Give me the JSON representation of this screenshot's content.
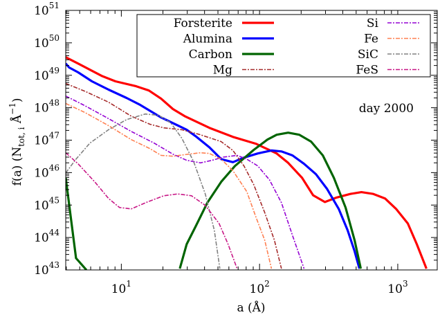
{
  "chart_data": {
    "type": "line",
    "title": "",
    "xlabel": "a (Å)",
    "ylabel": {
      "main": "f(a)  (N",
      "sub": "tot, i",
      "unit": " Å",
      "sup": "−1",
      "close": ")"
    },
    "annotation": "day 2000",
    "xscale": "log",
    "yscale": "log",
    "xlim": [
      3.96,
      1930
    ],
    "ylim": [
      1e+43,
      1e+51
    ],
    "x_ticks": [
      {
        "base": "10",
        "exp": "1",
        "value": 10
      },
      {
        "base": "10",
        "exp": "2",
        "value": 100
      },
      {
        "base": "10",
        "exp": "3",
        "value": 1000
      }
    ],
    "y_ticks": [
      {
        "base": "10",
        "exp": "43",
        "value": 1e+43
      },
      {
        "base": "10",
        "exp": "44",
        "value": 1e+44
      },
      {
        "base": "10",
        "exp": "45",
        "value": 1e+45
      },
      {
        "base": "10",
        "exp": "46",
        "value": 1e+46
      },
      {
        "base": "10",
        "exp": "47",
        "value": 1e+47
      },
      {
        "base": "10",
        "exp": "48",
        "value": 1e+48
      },
      {
        "base": "10",
        "exp": "49",
        "value": 1e+49
      },
      {
        "base": "10",
        "exp": "50",
        "value": 1e+50
      },
      {
        "base": "10",
        "exp": "51",
        "value": 1e+51
      }
    ],
    "grid": false,
    "legend_position": "top-right",
    "series": [
      {
        "name": "Forsterite",
        "color": "#ff0000",
        "style": "solid",
        "x": [
          3.96,
          4.87,
          7.2,
          9.07,
          12.8,
          15.8,
          19.4,
          23.6,
          28.7,
          43.4,
          64.2,
          93.9,
          133,
          161,
          203,
          244,
          297,
          361,
          454,
          546,
          665,
          808,
          972,
          1182,
          1373,
          1613
        ],
        "y": [
          3.6e+49,
          2.3e+49,
          9.6e+48,
          6.5e+48,
          4.6e+48,
          3.4e+48,
          1.9e+48,
          9.1e+47,
          5.5e+47,
          2.4e+47,
          1.26e+47,
          7.8e+46,
          3.9e+46,
          2e+46,
          6.9e+45,
          2e+45,
          1.24e+45,
          1.7e+45,
          2.2e+45,
          2.5e+45,
          2.2e+45,
          1.6e+45,
          7.6e+44,
          2.7e+44,
          6.2e+43,
          1.1e+43
        ]
      },
      {
        "name": "Alumina",
        "color": "#0000ff",
        "style": "solid",
        "x": [
          3.96,
          4.19,
          4.87,
          6.13,
          8.08,
          10.9,
          13.7,
          19.4,
          29.7,
          34.5,
          43.4,
          52.8,
          64.2,
          77.2,
          97.2,
          122,
          144,
          173,
          210,
          256,
          307,
          374,
          434,
          487,
          528
        ],
        "y": [
          2.3e+49,
          1.74e+49,
          1.23e+49,
          6.5e+48,
          3.6e+48,
          2e+48,
          1.22e+48,
          5e+47,
          2.1e+47,
          1.32e+47,
          6e+46,
          2.6e+46,
          2.1e+46,
          2.9e+46,
          3.9e+46,
          4.8e+46,
          4.5e+46,
          3.4e+46,
          1.86e+46,
          8.9e+45,
          3.2e+45,
          7.6e+44,
          1.66e+44,
          3.8e+43,
          1.1e+43
        ]
      },
      {
        "name": "Carbon",
        "color": "#006400",
        "style": "solid",
        "segments": [
          {
            "x": [
              3.96,
              4.7,
              5.59
            ],
            "y": [
              6.9e+45,
              2.3e+43,
              1e+43
            ]
          },
          {
            "x": [
              26.5,
              29.7,
              34.5,
              41.9,
              52.8,
              66.4,
              90.7,
              114,
              133,
              161,
              194,
              236,
              287,
              345,
              419,
              487,
              540
            ],
            "y": [
              1.1e+43,
              6.2e+43,
              2.2e+44,
              1.18e+45,
              5.2e+45,
              1.6e+46,
              5e+46,
              1.04e+47,
              1.47e+47,
              1.7e+47,
              1.47e+47,
              9e+46,
              3.4e+46,
              6.9e+45,
              8.4e+44,
              8.3e+43,
              1.1e+43
            ]
          }
        ]
      },
      {
        "name": "Mg",
        "color": "#a52a2a",
        "style": "dashdot",
        "x": [
          3.96,
          5.46,
          8.08,
          11.8,
          16.1,
          20.3,
          27.4,
          37.4,
          52.8,
          64.2,
          77.2,
          90.7,
          109,
          128,
          144
        ],
        "y": [
          5.6e+48,
          3.2e+48,
          1.48e+48,
          5.5e+47,
          3.1e+47,
          2.4e+47,
          2.1e+47,
          1.47e+47,
          9e+46,
          4.8e+46,
          1.6e+46,
          4.3e+45,
          5.9e+44,
          8.3e+43,
          1.1e+43
        ]
      },
      {
        "name": "Si",
        "color": "#9400d3",
        "style": "dashdot",
        "x": [
          3.96,
          5.46,
          8.08,
          11.8,
          17.3,
          23.6,
          29.7,
          37.4,
          45.4,
          54.6,
          68.8,
          80.8,
          97.2,
          118,
          144,
          173,
          210
        ],
        "y": [
          2.3e+48,
          1.15e+48,
          4.6e+47,
          1.86e+47,
          8.1e+46,
          3.7e+46,
          2.4e+46,
          2e+46,
          2.4e+46,
          3e+46,
          3.4e+46,
          2.6e+46,
          1.6e+46,
          6e+45,
          1.18e+45,
          1.17e+44,
          1.1e+43
        ]
      },
      {
        "name": "Fe",
        "color": "#ff7f50",
        "style": "dashdot",
        "x": [
          3.96,
          5.46,
          8.08,
          11.8,
          16.1,
          19.4,
          23.6,
          30.7,
          37.4,
          43.4,
          52.8,
          64.2,
          80.8,
          93.9,
          109,
          122
        ],
        "y": [
          1.35e+48,
          7.1e+47,
          2.8e+47,
          1.04e+47,
          5.5e+46,
          3.4e+46,
          3.2e+46,
          3.7e+46,
          4.1e+46,
          3.9e+46,
          2.6e+46,
          1.14e+46,
          2.6e+45,
          4.4e+44,
          8.3e+43,
          1.1e+43
        ]
      },
      {
        "name": "SiC",
        "color": "#808080",
        "style": "dashdot",
        "x": [
          3.96,
          4.7,
          5.92,
          8.08,
          10.9,
          14.9,
          18.7,
          22.8,
          27.4,
          33.3,
          40.5,
          47.1,
          51.6
        ],
        "y": [
          9.8e+45,
          2.6e+46,
          8.1e+46,
          2.1e+47,
          4.3e+47,
          6.4e+47,
          5.8e+47,
          3.4e+47,
          1.15e+47,
          2.2e+46,
          2.2e+45,
          1.66e+44,
          1.1e+43
        ]
      },
      {
        "name": "FeS",
        "color": "#c71585",
        "style": "dashdot",
        "x": [
          3.96,
          4.87,
          6.42,
          8.08,
          9.7,
          11.8,
          15.4,
          20.3,
          25.6,
          32.2,
          40.5,
          51.0,
          59.2,
          68.8
        ],
        "y": [
          4.1e+46,
          1.86e+46,
          5.2e+45,
          1.6e+45,
          8.4e+44,
          7.6e+44,
          1.24e+45,
          1.94e+45,
          2.2e+45,
          1.94e+45,
          9.8e+44,
          2.7e+44,
          6.2e+43,
          1.1e+43
        ]
      }
    ]
  }
}
